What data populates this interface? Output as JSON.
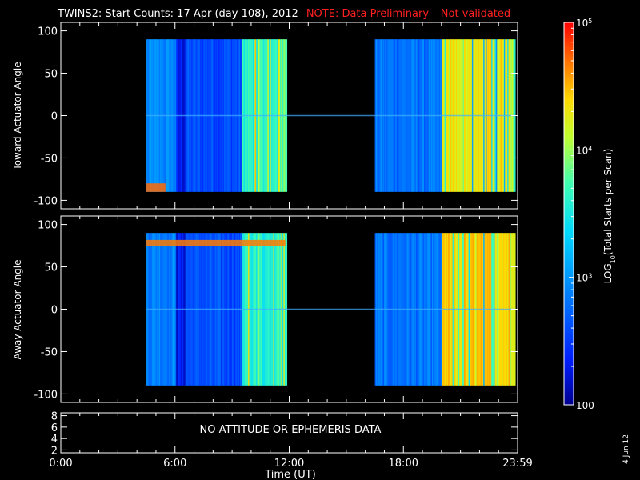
{
  "title": "TWINS2: Start Counts: 17 Apr (day 108), 2012",
  "note": "NOTE: Data Preliminary – Not validated",
  "date_stamp": "4 Jun 12",
  "colors": {
    "background": "#000000",
    "axes": "#ffffff",
    "note": "#ff2020"
  },
  "chart_data": [
    {
      "type": "heatmap",
      "panel": "Toward Actuator Angle",
      "ylabel": "Toward Actuator Angle",
      "ylim": [
        -110,
        110
      ],
      "y_ticks": [
        -100,
        -50,
        0,
        50,
        100
      ],
      "x_ticks": [
        "0:00",
        "6:00",
        "12:00",
        "18:00",
        "23:59"
      ],
      "xlim_hours": [
        0,
        24
      ],
      "angle_range": [
        -90,
        90
      ],
      "data_intervals_ut": [
        [
          "4:30",
          "11:50"
        ],
        [
          "16:30",
          "23:50"
        ]
      ],
      "description_bands_log10": [
        {
          "from": "4:30",
          "to": "6:00",
          "value": 2.9
        },
        {
          "from": "6:00",
          "to": "6:30",
          "value": 2.3
        },
        {
          "from": "6:30",
          "to": "9:30",
          "value": 2.6
        },
        {
          "from": "9:30",
          "to": "11:50",
          "value": 3.6
        },
        {
          "from": "16:30",
          "to": "20:00",
          "value": 2.8
        },
        {
          "from": "20:00",
          "to": "23:50",
          "value": 4.3
        }
      ]
    },
    {
      "type": "heatmap",
      "panel": "Away Actuator Angle",
      "ylabel": "Away Actuator Angle",
      "ylim": [
        -110,
        110
      ],
      "y_ticks": [
        -100,
        -50,
        0,
        50,
        100
      ],
      "x_ticks": [
        "0:00",
        "6:00",
        "12:00",
        "18:00",
        "23:59"
      ],
      "xlim_hours": [
        0,
        24
      ],
      "angle_range": [
        -90,
        90
      ],
      "data_intervals_ut": [
        [
          "4:30",
          "11:50"
        ],
        [
          "16:30",
          "23:50"
        ]
      ],
      "description_bands_log10": [
        {
          "from": "4:30",
          "to": "6:00",
          "value": 2.9
        },
        {
          "from": "6:00",
          "to": "6:30",
          "value": 2.3
        },
        {
          "from": "6:30",
          "to": "9:30",
          "value": 2.6
        },
        {
          "from": "9:30",
          "to": "11:50",
          "value": 3.6
        },
        {
          "from": "16:30",
          "to": "20:00",
          "value": 2.8
        },
        {
          "from": "20:00",
          "to": "23:50",
          "value": 4.4
        }
      ]
    },
    {
      "type": "line",
      "panel": "ephemeris",
      "ylim": [
        1.5,
        8.5
      ],
      "y_ticks": [
        2,
        4,
        6,
        8
      ],
      "x_ticks": [
        "0:00",
        "6:00",
        "12:00",
        "18:00",
        "23:59"
      ],
      "xlabel": "Time (UT)",
      "message": "NO ATTITUDE OR EPHEMERIS DATA"
    }
  ],
  "colorbar": {
    "label": "LOG10(Total Starts per Scan)",
    "label_prefix": "LOG",
    "label_sub": "10",
    "label_suffix": "(Total Starts per Scan)",
    "scale": "log",
    "range": [
      100,
      100000
    ],
    "ticks": [
      {
        "value": 100,
        "base": "100",
        "exp": ""
      },
      {
        "value": 1000,
        "base": "10",
        "exp": "3"
      },
      {
        "value": 10000,
        "base": "10",
        "exp": "4"
      },
      {
        "value": 100000,
        "base": "10",
        "exp": "5"
      }
    ]
  }
}
